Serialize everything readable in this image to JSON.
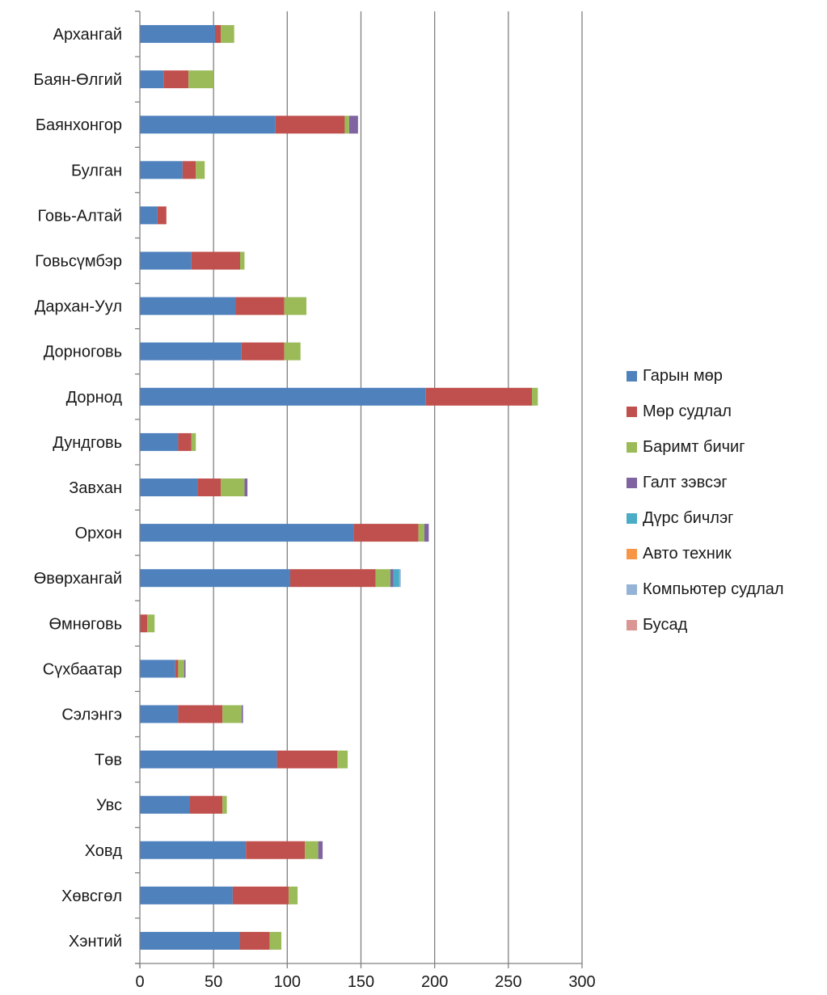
{
  "chart_data": {
    "type": "bar",
    "orientation": "horizontal",
    "stacked": true,
    "categories": [
      "Архангай",
      "Баян-Өлгий",
      "Баянхонгор",
      "Булган",
      "Говь-Алтай",
      "Говьсүмбэр",
      "Дархан-Уул",
      "Дорноговь",
      "Дорнод",
      "Дундговь",
      "Завхан",
      "Орхон",
      "Өвөрхангай",
      "Өмнөговь",
      "Сүхбаатар",
      "Сэлэнгэ",
      "Төв",
      "Увс",
      "Ховд",
      "Хөвсгөл",
      "Хэнтий"
    ],
    "series": [
      {
        "name": "Гарын мөр",
        "color": "#4f81bd",
        "values": [
          51,
          16,
          92,
          29,
          12,
          35,
          65,
          69,
          194,
          26,
          39,
          145,
          102,
          0,
          24,
          26,
          93,
          34,
          72,
          63,
          68
        ]
      },
      {
        "name": "Мөр судлал",
        "color": "#c0504d",
        "values": [
          4,
          17,
          47,
          9,
          6,
          33,
          33,
          29,
          72,
          9,
          16,
          44,
          58,
          5,
          2,
          30,
          41,
          22,
          40,
          38,
          20
        ]
      },
      {
        "name": "Баримт бичиг",
        "color": "#9bbb59",
        "values": [
          9,
          17,
          3,
          6,
          0,
          3,
          15,
          11,
          4,
          3,
          16,
          4,
          10,
          5,
          4,
          13,
          7,
          3,
          9,
          6,
          8
        ]
      },
      {
        "name": "Галт зэвсэг",
        "color": "#8064a2",
        "values": [
          0,
          0,
          6,
          0,
          0,
          0,
          0,
          0,
          0,
          0,
          2,
          3,
          2,
          0,
          1,
          1,
          0,
          0,
          3,
          0,
          0
        ]
      },
      {
        "name": "Дүрс бичлэг",
        "color": "#4bacc6",
        "values": [
          0,
          0,
          0,
          0,
          0,
          0,
          0,
          0,
          0,
          0,
          0,
          0,
          4,
          0,
          0,
          0,
          0,
          0,
          0,
          0,
          0
        ]
      },
      {
        "name": "Авто техник",
        "color": "#f79646",
        "values": [
          0,
          0,
          0,
          0,
          0,
          0,
          0,
          0,
          0,
          0,
          0,
          0,
          0,
          0,
          0,
          0,
          0,
          0,
          0,
          0,
          0
        ]
      },
      {
        "name": "Компьютер судлал",
        "color": "#95b3d7",
        "values": [
          0,
          0,
          0,
          0,
          0,
          0,
          0,
          0,
          0,
          0,
          0,
          0,
          1,
          0,
          0,
          0,
          0,
          0,
          0,
          0,
          0
        ]
      },
      {
        "name": "Бусад",
        "color": "#d99694",
        "values": [
          0,
          0,
          0,
          0,
          0,
          0,
          0,
          0,
          0,
          0,
          0,
          0,
          0,
          0,
          0,
          0,
          0,
          0,
          0,
          0,
          0
        ]
      }
    ],
    "xlim": [
      0,
      300
    ],
    "xticks": [
      0,
      50,
      100,
      150,
      200,
      250,
      300
    ],
    "grid": "vertical",
    "legend_position": "right"
  }
}
